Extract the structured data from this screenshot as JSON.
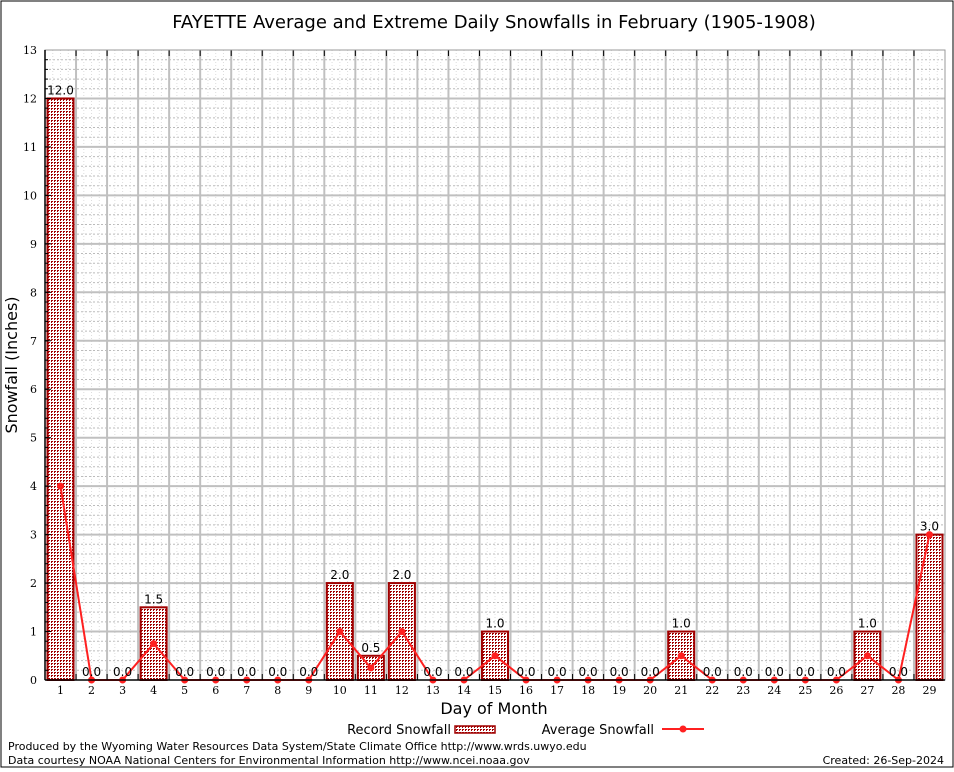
{
  "chart_data": {
    "type": "bar",
    "title": "FAYETTE Average and Extreme Daily Snowfalls in February (1905-1908)",
    "xlabel": "Day of Month",
    "ylabel": "Snowfall (Inches)",
    "ylim": [
      0,
      13
    ],
    "yticks": [
      0,
      1,
      2,
      3,
      4,
      5,
      6,
      7,
      8,
      9,
      10,
      11,
      12,
      13
    ],
    "grid": true,
    "legend_placement": "bottom",
    "categories": [
      1,
      2,
      3,
      4,
      5,
      6,
      7,
      8,
      9,
      10,
      11,
      12,
      13,
      14,
      15,
      16,
      17,
      18,
      19,
      20,
      21,
      22,
      23,
      24,
      25,
      26,
      27,
      28,
      29
    ],
    "series": [
      {
        "name": "Record Snowfall",
        "type": "bar",
        "color": "#a00000",
        "values": [
          12.0,
          0.0,
          0.0,
          1.5,
          0.0,
          0.0,
          0.0,
          0.0,
          0.0,
          2.0,
          0.5,
          2.0,
          0.0,
          0.0,
          1.0,
          0.0,
          0.0,
          0.0,
          0.0,
          0.0,
          1.0,
          0.0,
          0.0,
          0.0,
          0.0,
          0.0,
          1.0,
          0.0,
          3.0
        ]
      },
      {
        "name": "Average Snowfall",
        "type": "line",
        "color": "#ff2020",
        "values": [
          4.0,
          0,
          0,
          0.75,
          0,
          0,
          0,
          0,
          0,
          1.0,
          0.25,
          1.0,
          0,
          0,
          0.5,
          0,
          0,
          0,
          0,
          0,
          0.5,
          0,
          0,
          0,
          0,
          0,
          0.5,
          0,
          3.0
        ]
      }
    ]
  },
  "footer": {
    "produced_by": "Produced by the Wyoming Water Resources Data System/State Climate Office http://www.wrds.uwyo.edu",
    "data_courtesy": "Data courtesy NOAA National Centers for Environmental Information http://www.ncei.noaa.gov",
    "created": "Created: 26-Sep-2024"
  }
}
